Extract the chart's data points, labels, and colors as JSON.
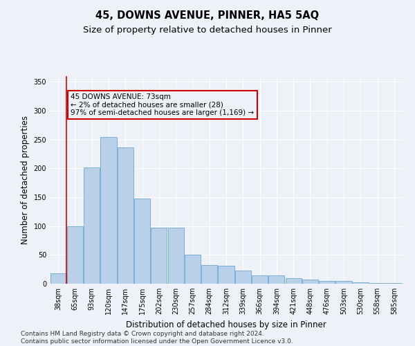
{
  "title": "45, DOWNS AVENUE, PINNER, HA5 5AQ",
  "subtitle": "Size of property relative to detached houses in Pinner",
  "xlabel": "Distribution of detached houses by size in Pinner",
  "ylabel": "Number of detached properties",
  "categories": [
    "38sqm",
    "65sqm",
    "93sqm",
    "120sqm",
    "147sqm",
    "175sqm",
    "202sqm",
    "230sqm",
    "257sqm",
    "284sqm",
    "312sqm",
    "339sqm",
    "366sqm",
    "394sqm",
    "421sqm",
    "448sqm",
    "476sqm",
    "503sqm",
    "530sqm",
    "558sqm",
    "585sqm"
  ],
  "values": [
    18,
    100,
    202,
    255,
    237,
    148,
    97,
    97,
    50,
    33,
    31,
    23,
    15,
    15,
    10,
    7,
    5,
    5,
    2,
    1,
    1
  ],
  "bar_color": "#b8d0e8",
  "bar_edge_color": "#7aafd4",
  "vline_color": "#cc0000",
  "annotation_text_line1": "45 DOWNS AVENUE: 73sqm",
  "annotation_text_line2": "← 2% of detached houses are smaller (28)",
  "annotation_text_line3": "97% of semi-detached houses are larger (1,169) →",
  "annotation_box_color": "#cc0000",
  "ylim": [
    0,
    360
  ],
  "yticks": [
    0,
    50,
    100,
    150,
    200,
    250,
    300,
    350
  ],
  "footer_line1": "Contains HM Land Registry data © Crown copyright and database right 2024.",
  "footer_line2": "Contains public sector information licensed under the Open Government Licence v3.0.",
  "background_color": "#eef2f8",
  "grid_color": "#ffffff",
  "title_fontsize": 10.5,
  "subtitle_fontsize": 9.5,
  "axis_label_fontsize": 8.5,
  "tick_fontsize": 7,
  "annotation_fontsize": 7.5,
  "footer_fontsize": 6.5
}
